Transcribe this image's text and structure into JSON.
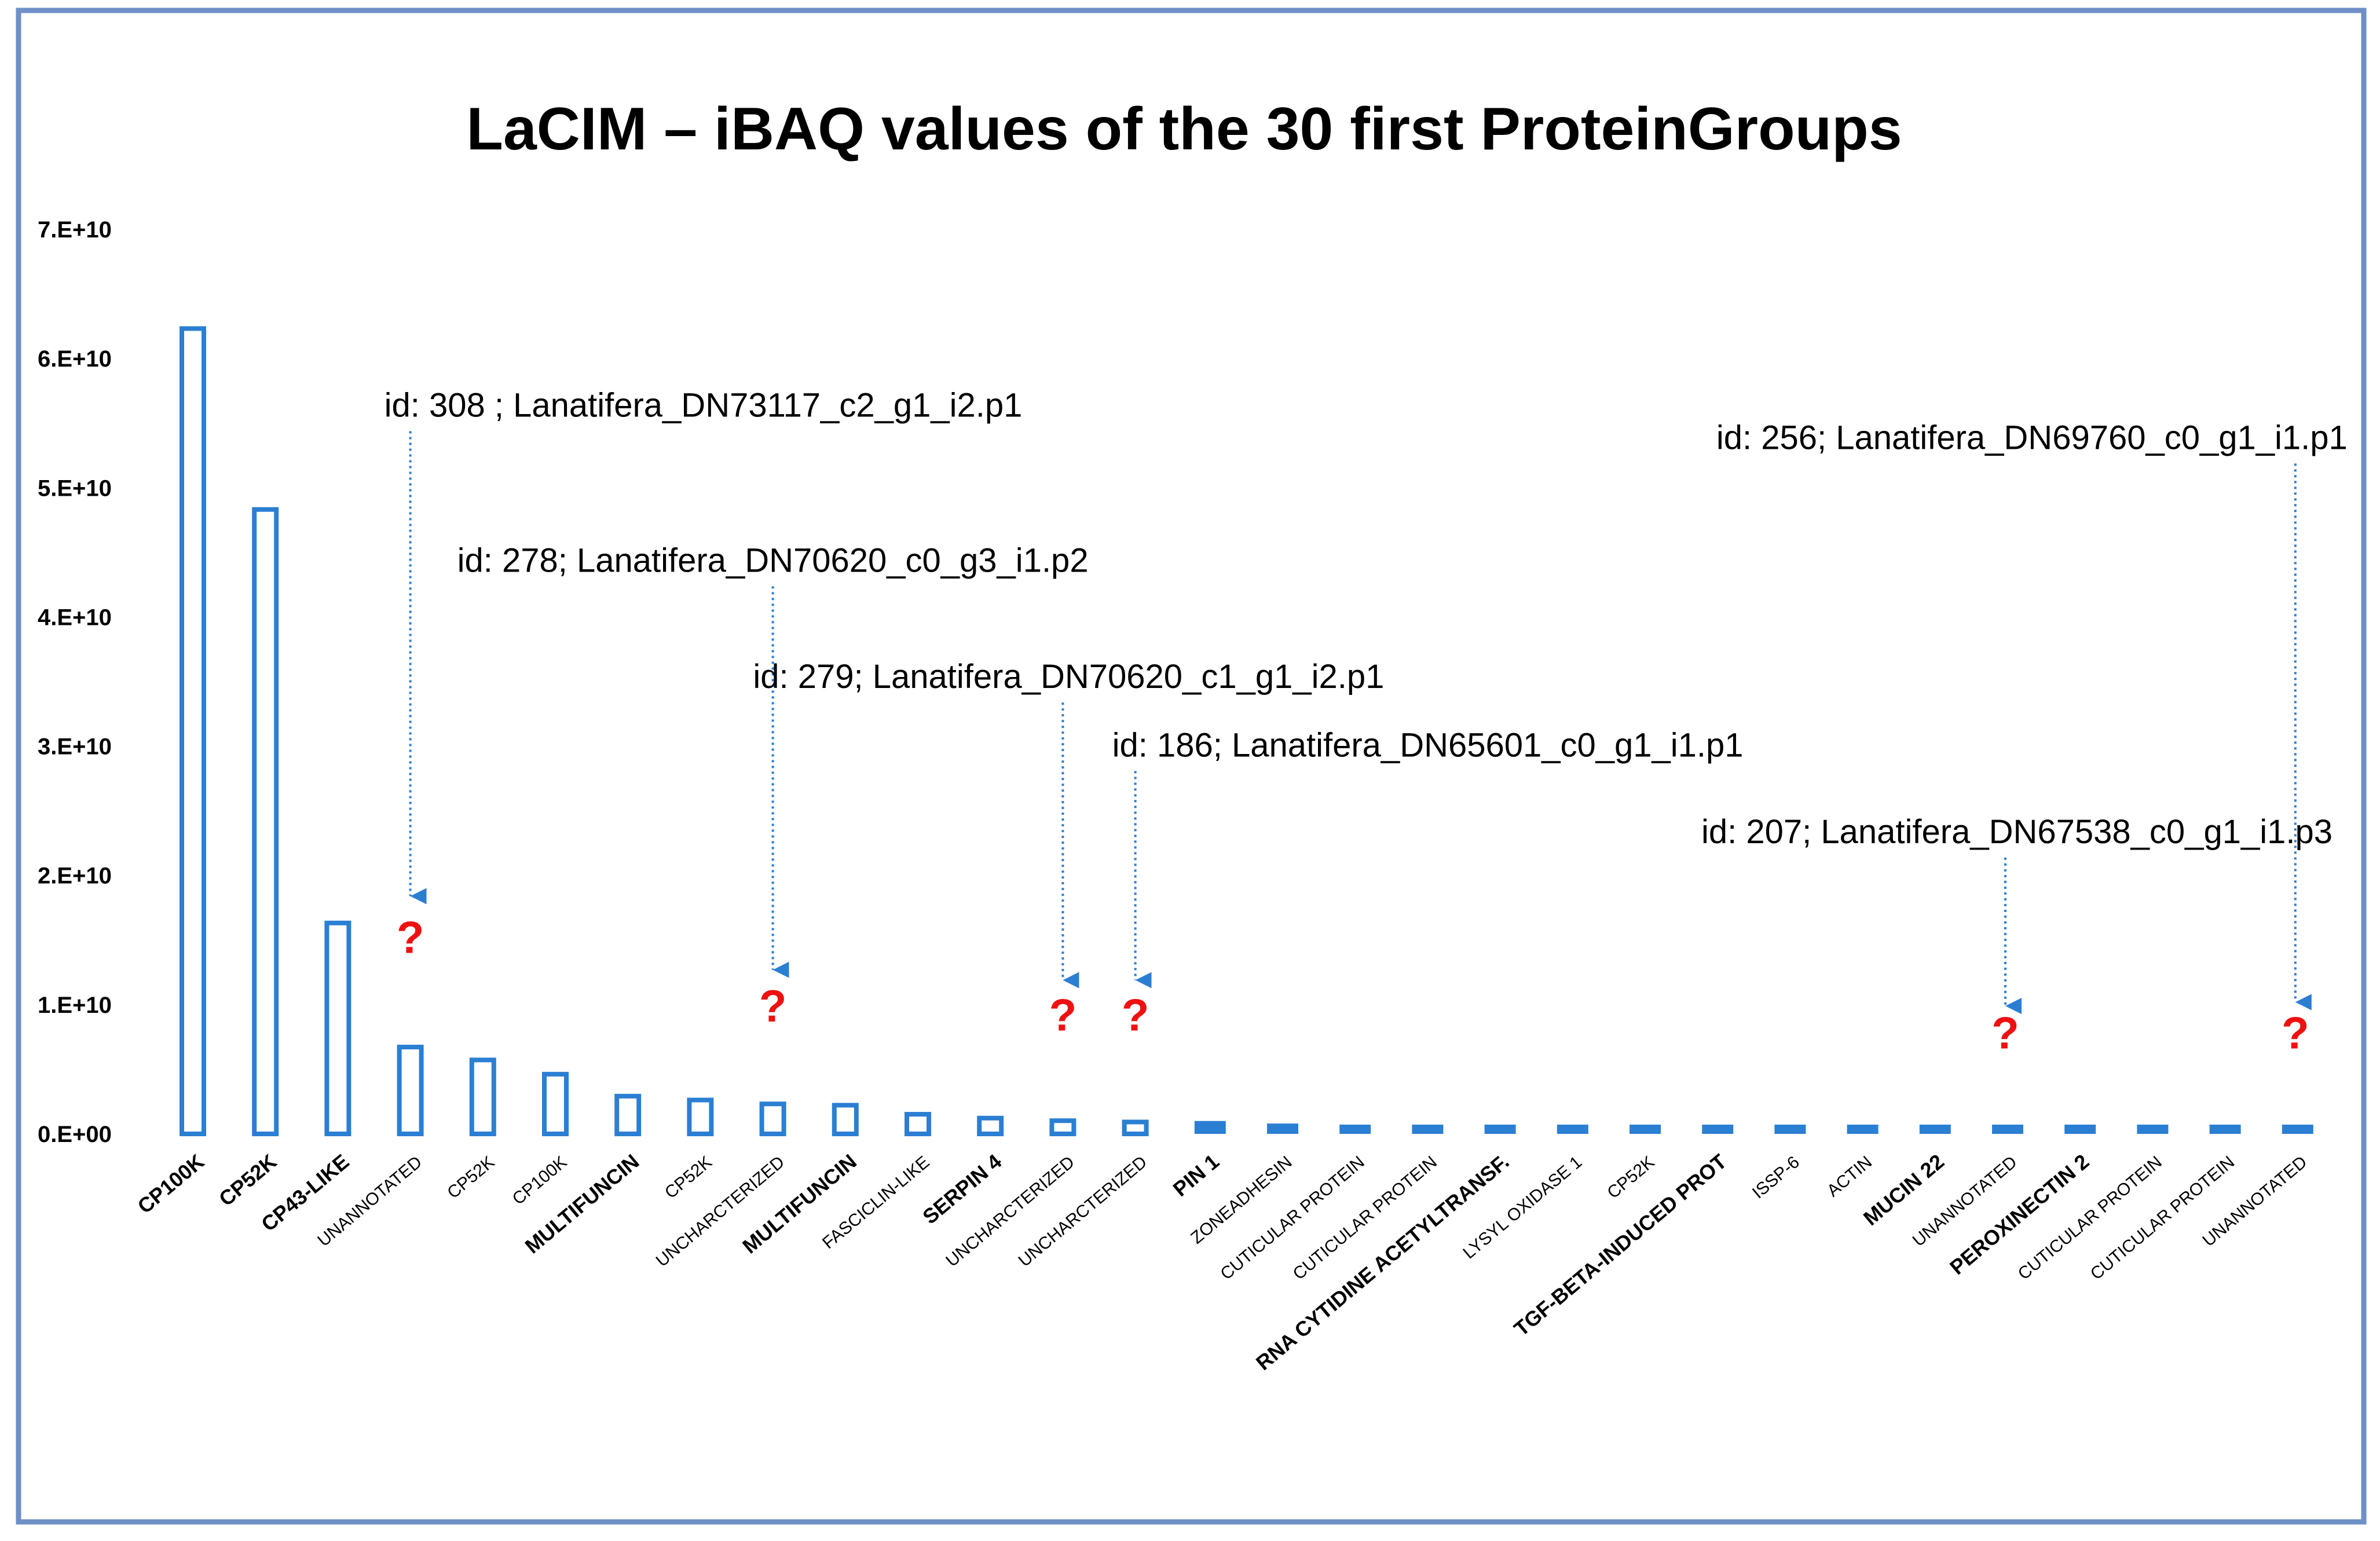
{
  "colors": {
    "frame": "#6f8fc7",
    "bar": "#2b7fd3",
    "arrow": "#2b7fd3",
    "question": "#ee1111",
    "text": "#000000"
  },
  "chart_data": {
    "type": "bar",
    "title": "LaCIM – iBAQ values of the 30 first ProteinGroups",
    "xlabel": "",
    "ylabel": "",
    "ylim": [
      0,
      70000000000
    ],
    "yticks": [
      {
        "value": 0,
        "label": "0.E+00"
      },
      {
        "value": 10000000000,
        "label": "1.E+10"
      },
      {
        "value": 20000000000,
        "label": "2.E+10"
      },
      {
        "value": 30000000000,
        "label": "3.E+10"
      },
      {
        "value": 40000000000,
        "label": "4.E+10"
      },
      {
        "value": 50000000000,
        "label": "5.E+10"
      },
      {
        "value": 60000000000,
        "label": "6.E+10"
      },
      {
        "value": 70000000000,
        "label": "7.E+10"
      }
    ],
    "categories": [
      "CP100K",
      "CP52K",
      "CP43-LIKE",
      "UNANNOTATED",
      "CP52K",
      "CP100K",
      "MULTIFUNCIN",
      "CP52K",
      "UNCHARCTERIZED",
      "MULTIFUNCIN",
      "FASCICLIN-LIKE",
      "SERPIN 4",
      "UNCHARCTERIZED",
      "UNCHARCTERIZED",
      "PIN 1",
      "ZONEADHESIN",
      "CUTICULAR PROTEIN",
      "CUTICULAR PROTEIN",
      "RNA CYTIDINE ACETYLTRANSF.",
      "LYSYL OXIDASE 1",
      "CP52K",
      "TGF-BETA-INDUCED PROT",
      "ISSP-6",
      "ACTIN",
      "MUCIN 22",
      "UNANNOTATED",
      "PEROXINECTIN 2",
      "CUTICULAR PROTEIN",
      "CUTICULAR PROTEIN",
      "UNANNOTATED"
    ],
    "category_emphasis": [
      true,
      true,
      true,
      false,
      false,
      false,
      true,
      false,
      false,
      true,
      false,
      true,
      false,
      false,
      true,
      false,
      false,
      false,
      true,
      false,
      false,
      true,
      false,
      false,
      true,
      false,
      true,
      false,
      false,
      false
    ],
    "values": [
      62500000000,
      48500000000,
      16500000000,
      6900000000,
      5900000000,
      4800000000,
      3100000000,
      2800000000,
      2500000000,
      2400000000,
      1700000000,
      1400000000,
      1200000000,
      1100000000,
      1000000000,
      800000000,
      600000000,
      550000000,
      520000000,
      500000000,
      480000000,
      460000000,
      440000000,
      420000000,
      410000000,
      400000000,
      390000000,
      380000000,
      370000000,
      360000000
    ],
    "annotations": [
      {
        "text": "id: 308 ; Lanatifera_DN73117_c2_g1_i2.p1",
        "category_index": 3,
        "label_value": 55500000000,
        "arrow_tip_value": 17500000000,
        "mark": "?",
        "mark_value": 14000000000
      },
      {
        "text": "id: 278; Lanatifera_DN70620_c0_g3_i1.p2",
        "category_index": 8,
        "label_value": 43500000000,
        "arrow_tip_value": 11800000000,
        "mark": "?",
        "mark_value": 8700000000
      },
      {
        "text": "id: 279; Lanatifera_DN70620_c1_g1_i2.p1",
        "category_index": 12,
        "label_value": 34500000000,
        "arrow_tip_value": 11000000000,
        "mark": "?",
        "mark_value": 8000000000
      },
      {
        "text": "id: 186; Lanatifera_DN65601_c0_g1_i1.p1",
        "category_index": 13,
        "label_value": 29200000000,
        "arrow_tip_value": 11000000000,
        "mark": "?",
        "mark_value": 8000000000
      },
      {
        "text": "id: 207; Lanatifera_DN67538_c0_g1_i1.p3",
        "category_index": 25,
        "label_value": 22500000000,
        "arrow_tip_value": 9000000000,
        "mark": "?",
        "mark_value": 6600000000
      },
      {
        "text": "id: 256; Lanatifera_DN69760_c0_g1_i1.p1",
        "category_index": 29,
        "label_value": 53000000000,
        "arrow_tip_value": 9300000000,
        "mark": "?",
        "mark_value": 6600000000
      }
    ]
  }
}
